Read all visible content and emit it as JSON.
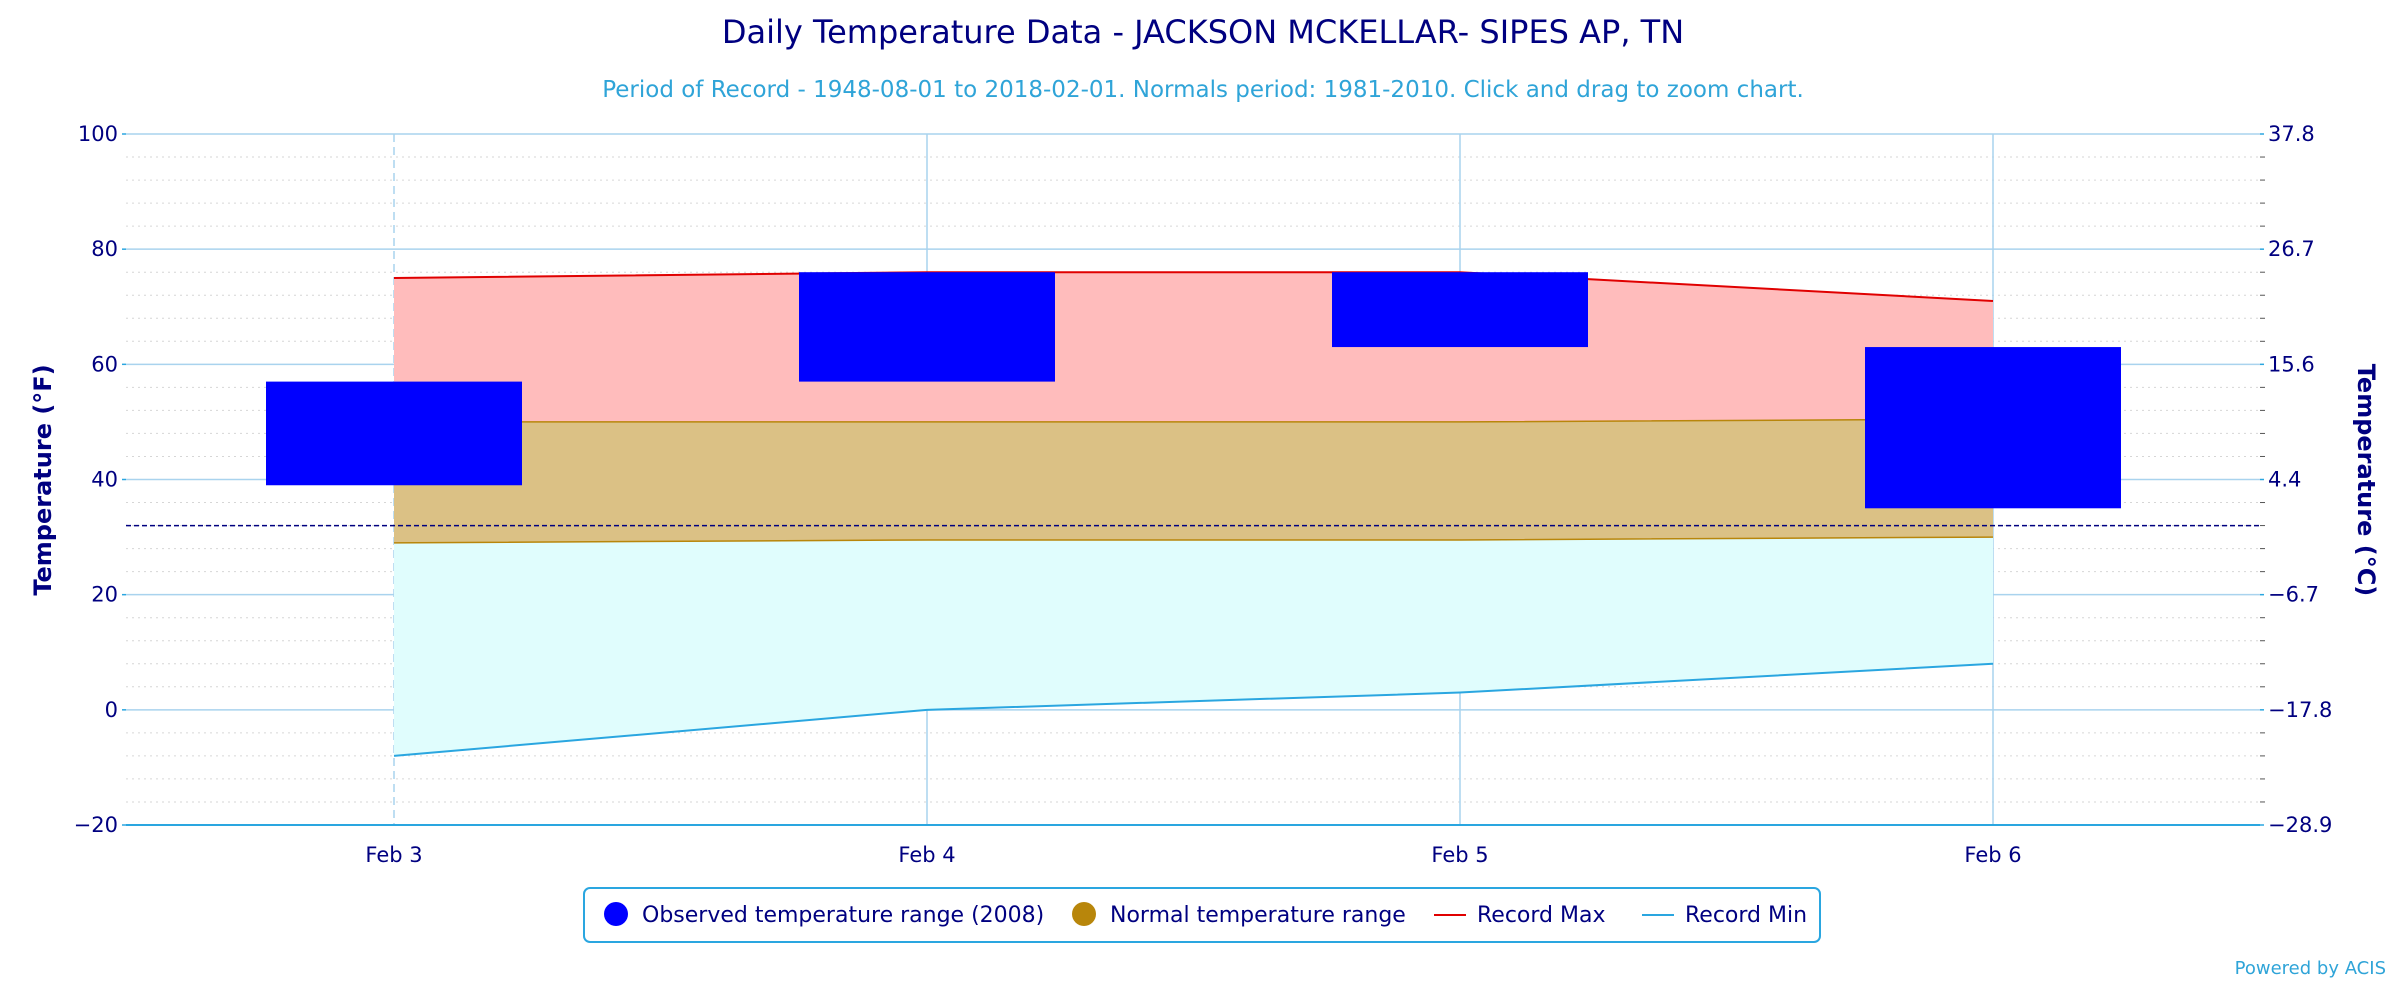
{
  "chart_data": {
    "type": "bar",
    "title": "Daily Temperature Data - JACKSON MCKELLAR- SIPES AP, TN",
    "subtitle": "Period of Record - 1948-08-01 to 2018-02-01. Normals period: 1981-2010. Click and drag to zoom chart.",
    "ylabel": "Temperature (°F)",
    "ylabel_right": "Temperature (°C)",
    "ylim": [
      -20,
      100
    ],
    "yticks": [
      "100",
      "80",
      "60",
      "40",
      "20",
      "0",
      "−20"
    ],
    "yticks_right": [
      "37.8",
      "26.7",
      "15.6",
      "4.4",
      "−6.7",
      "−17.8",
      "−28.9"
    ],
    "categories": [
      "Feb 3",
      "Feb 4",
      "Feb 5",
      "Feb 6"
    ],
    "freezing_line": 32,
    "observed": {
      "name": "Observed temperature range (2008)",
      "low": [
        39,
        57,
        63,
        35
      ],
      "high": [
        57,
        76,
        76,
        63
      ],
      "color": "#0000ff"
    },
    "normal": {
      "name": "Normal temperature range",
      "low": [
        29,
        29.5,
        29.5,
        30
      ],
      "high": [
        50,
        50,
        50,
        50.5
      ],
      "color": "#b8860b"
    },
    "record_max": {
      "name": "Record Max",
      "values": [
        75,
        76,
        76,
        71
      ],
      "color": "#e00000"
    },
    "record_min": {
      "name": "Record Min",
      "values": [
        -8,
        0,
        3,
        8
      ],
      "color": "#2aa6e0"
    },
    "grid": true,
    "legend_position": "bottom-center"
  },
  "credit": "Powered by ACIS"
}
